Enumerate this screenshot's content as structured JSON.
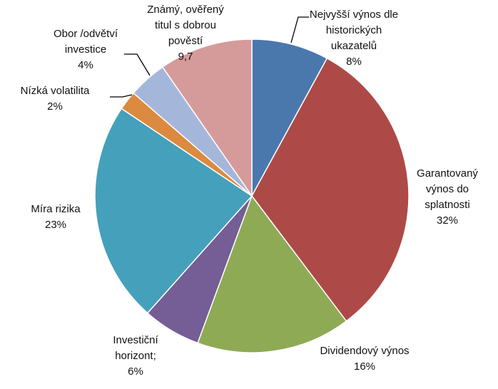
{
  "chart_data": {
    "type": "pie",
    "start_angle_deg": 0,
    "direction": "clockwise",
    "slices": [
      {
        "label_lines": [
          "Nejvyšší výnos dle",
          "historických",
          "ukazatelů",
          "8%"
        ],
        "value": 8,
        "color": "#4A78AD"
      },
      {
        "label_lines": [
          "Garantovaný",
          "výnos do",
          "splatnosti",
          "32%"
        ],
        "value": 32,
        "color": "#AD4A48"
      },
      {
        "label_lines": [
          "Dividendový výnos",
          "16%"
        ],
        "value": 16,
        "color": "#8FAA55"
      },
      {
        "label_lines": [
          "Investiční",
          "horizont;",
          "6%"
        ],
        "value": 6,
        "color": "#755D95"
      },
      {
        "label_lines": [
          "Míra rizika",
          "23%"
        ],
        "value": 23,
        "color": "#45A0BB"
      },
      {
        "label_lines": [
          "Nízká volatilita",
          "2%"
        ],
        "value": 2,
        "color": "#DC8A3F"
      },
      {
        "label_lines": [
          "Obor /odvětví",
          "investice",
          "4%"
        ],
        "value": 4,
        "color": "#A5B6DB"
      },
      {
        "label_lines": [
          "Známý, ověřený",
          "titul s dobrou",
          "pověstí",
          "9,7"
        ],
        "value": 9.7,
        "color": "#D59B9A"
      }
    ]
  }
}
